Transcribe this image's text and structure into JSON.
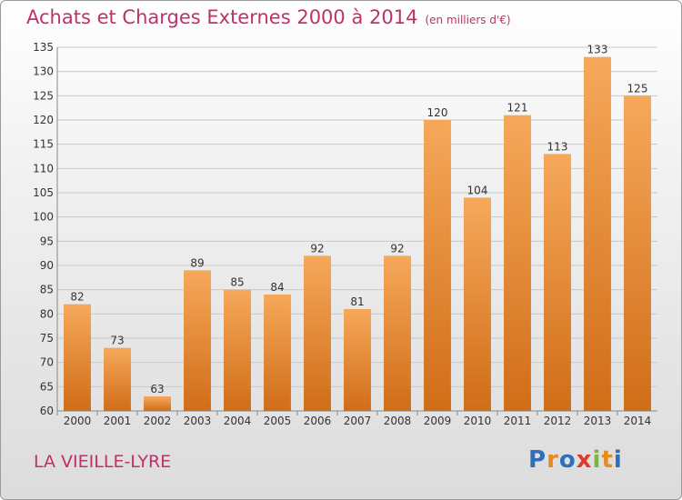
{
  "header": {
    "title": "Achats et Charges Externes 2000 à 2014",
    "unit": "(en milliers d'€)"
  },
  "footer": {
    "commune": "LA VIEILLE-LYRE",
    "logo_letters": [
      "P",
      "r",
      "o",
      "x",
      "i",
      "t",
      "i"
    ],
    "logo_colors": [
      "#2e6fb7",
      "#e58a1f",
      "#2e6fb7",
      "#e03a2d",
      "#79b642",
      "#e58a1f",
      "#2e6fb7"
    ]
  },
  "chart_data": {
    "type": "bar",
    "title": "Achats et Charges Externes 2000 à 2014",
    "subtitle": "(en milliers d'€)",
    "categories": [
      "2000",
      "2001",
      "2002",
      "2003",
      "2004",
      "2005",
      "2006",
      "2007",
      "2008",
      "2009",
      "2010",
      "2011",
      "2012",
      "2013",
      "2014"
    ],
    "values": [
      82,
      73,
      63,
      89,
      85,
      84,
      92,
      81,
      92,
      120,
      104,
      121,
      113,
      133,
      125
    ],
    "data_labels": [
      "82",
      "73",
      "63",
      "89",
      "85",
      "84",
      "92",
      "81",
      "92",
      "120",
      "104",
      "121",
      "113",
      "133",
      "125"
    ],
    "ylim": [
      60,
      135
    ],
    "yticks": [
      "60",
      "65",
      "70",
      "75",
      "80",
      "85",
      "90",
      "95",
      "100",
      "105",
      "110",
      "115",
      "120",
      "125",
      "130",
      "135"
    ],
    "grid": true,
    "bar_color_top": "#f6a85a",
    "bar_color_bottom": "#d06d18"
  }
}
